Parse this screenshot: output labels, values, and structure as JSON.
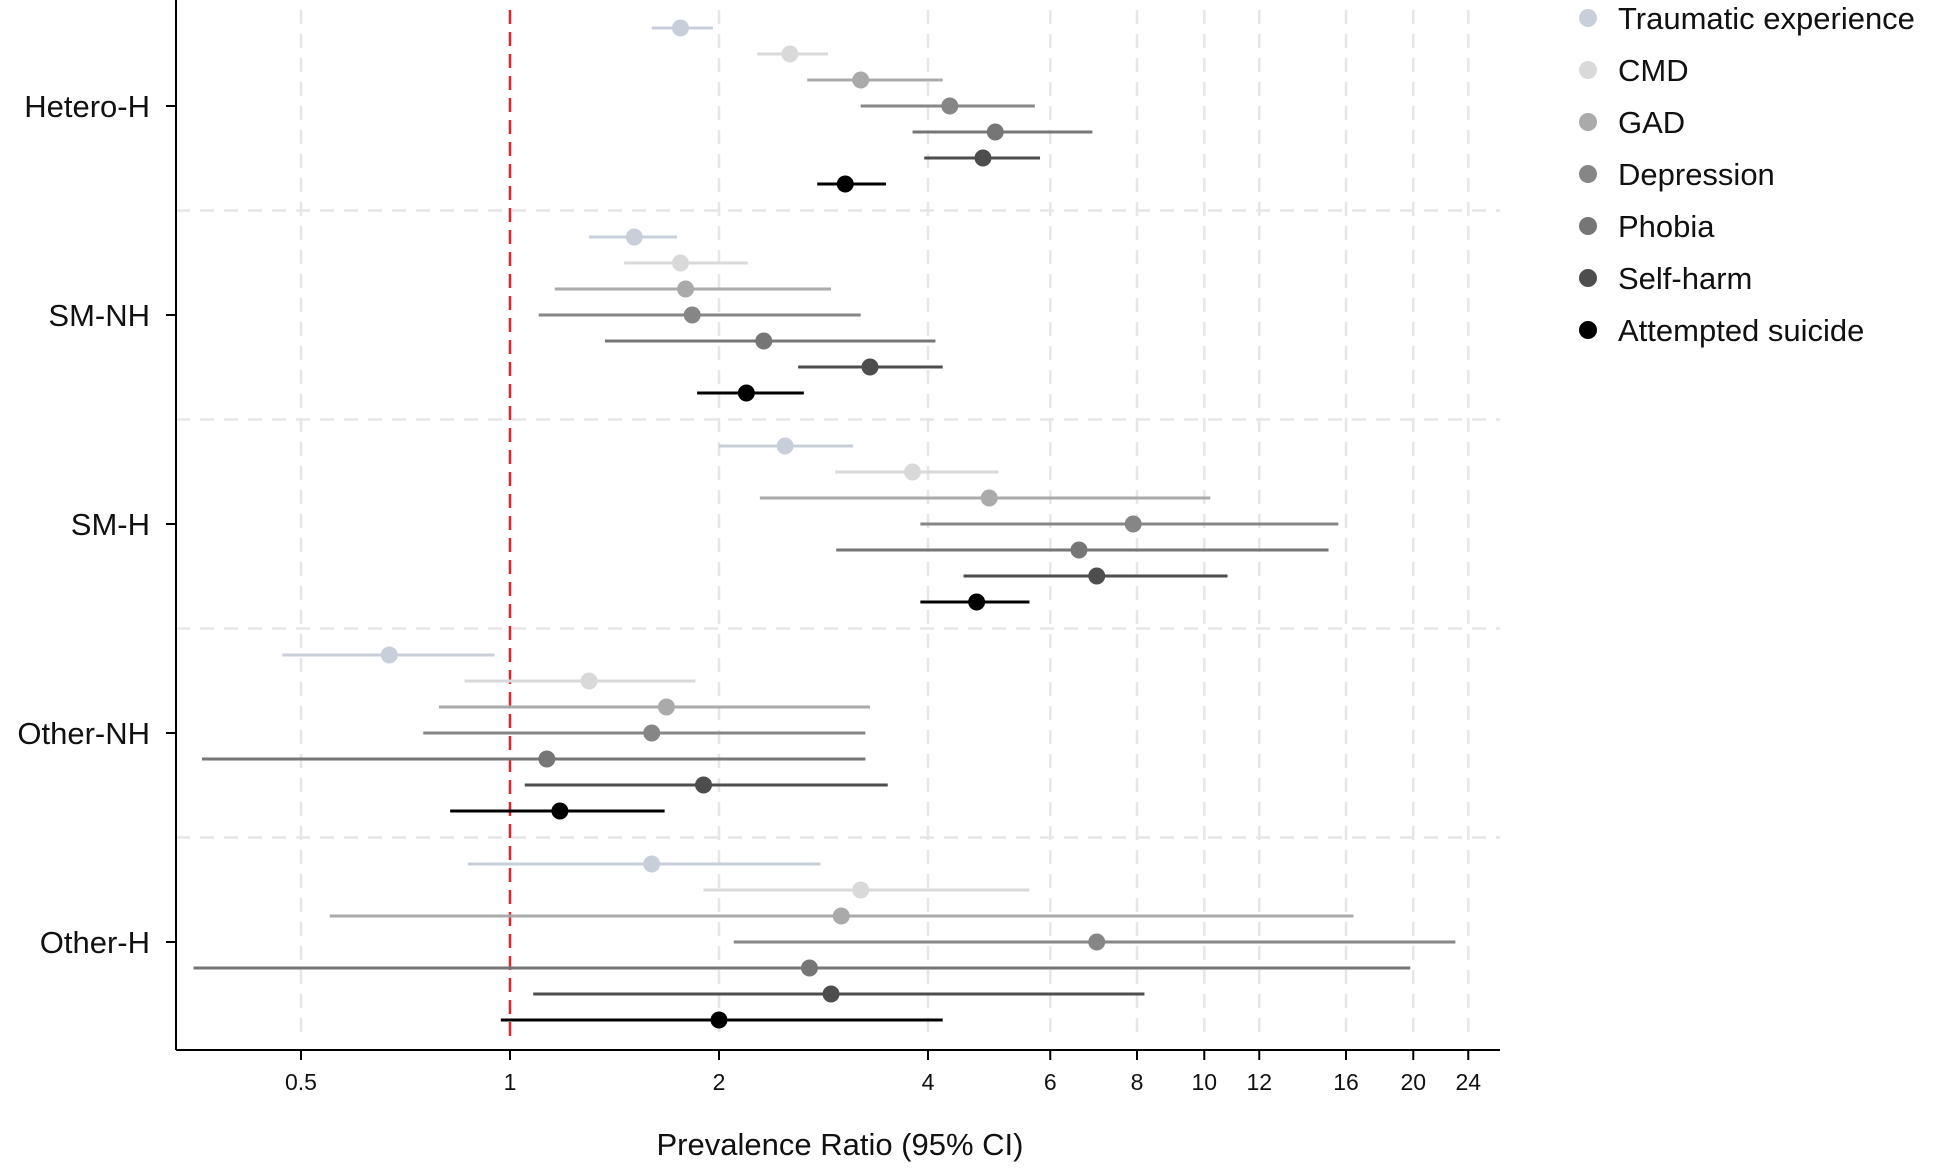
{
  "chart_data": {
    "type": "forest",
    "xlabel": "Prevalence Ratio (95% CI)",
    "x_scale": "log",
    "xlim": [
      0.34,
      26
    ],
    "x_ticks": [
      0.5,
      1,
      2,
      4,
      6,
      8,
      10,
      12,
      16,
      20,
      24
    ],
    "x_tick_labels": [
      "0.5",
      "1",
      "2",
      "4",
      "6",
      "8",
      "10",
      "12",
      "16",
      "20",
      "24"
    ],
    "reference_line": 1,
    "reference_line_color": "#e0262b",
    "grid": true,
    "legend_position": "top-right",
    "categories": [
      "Hetero-H",
      "SM-NH",
      "SM-H",
      "Other-NH",
      "Other-H"
    ],
    "series": [
      {
        "name": "Traumatic experience",
        "color": "#c8cfdb",
        "estimates": [
          1.76,
          1.51,
          2.49,
          0.67,
          1.6
        ],
        "lower": [
          1.6,
          1.3,
          2.0,
          0.47,
          0.87
        ],
        "upper": [
          1.96,
          1.74,
          3.12,
          0.95,
          2.8
        ]
      },
      {
        "name": "CMD",
        "color": "#d9d9d9",
        "estimates": [
          2.53,
          1.76,
          3.8,
          1.3,
          3.2
        ],
        "lower": [
          2.27,
          1.46,
          2.94,
          0.86,
          1.9
        ],
        "upper": [
          2.87,
          2.2,
          5.05,
          1.85,
          5.6
        ]
      },
      {
        "name": "GAD",
        "color": "#aaaaaa",
        "estimates": [
          3.2,
          1.79,
          4.9,
          1.68,
          3.0
        ],
        "lower": [
          2.68,
          1.16,
          2.29,
          0.79,
          0.55
        ],
        "upper": [
          4.2,
          2.9,
          10.2,
          3.3,
          16.4
        ]
      },
      {
        "name": "Depression",
        "color": "#868686",
        "estimates": [
          4.3,
          1.83,
          7.9,
          1.6,
          7.0
        ],
        "lower": [
          3.2,
          1.1,
          3.9,
          0.75,
          2.1
        ],
        "upper": [
          5.7,
          3.2,
          15.6,
          3.25,
          23.0
        ]
      },
      {
        "name": "Phobia",
        "color": "#767676",
        "estimates": [
          5.0,
          2.32,
          6.6,
          1.13,
          2.7
        ],
        "lower": [
          3.8,
          1.37,
          2.95,
          0.36,
          0.35
        ],
        "upper": [
          6.9,
          4.1,
          15.1,
          3.25,
          19.8
        ]
      },
      {
        "name": "Self-harm",
        "color": "#4d4d4d",
        "estimates": [
          4.8,
          3.3,
          7.0,
          1.9,
          2.9
        ],
        "lower": [
          3.95,
          2.6,
          4.5,
          1.05,
          1.08
        ],
        "upper": [
          5.8,
          4.2,
          10.8,
          3.5,
          8.2
        ]
      },
      {
        "name": "Attempted suicide",
        "color": "#000000",
        "estimates": [
          3.04,
          2.19,
          4.7,
          1.18,
          2.0
        ],
        "lower": [
          2.77,
          1.86,
          3.9,
          0.82,
          0.97
        ],
        "upper": [
          3.48,
          2.65,
          5.6,
          1.67,
          4.2
        ]
      }
    ]
  }
}
